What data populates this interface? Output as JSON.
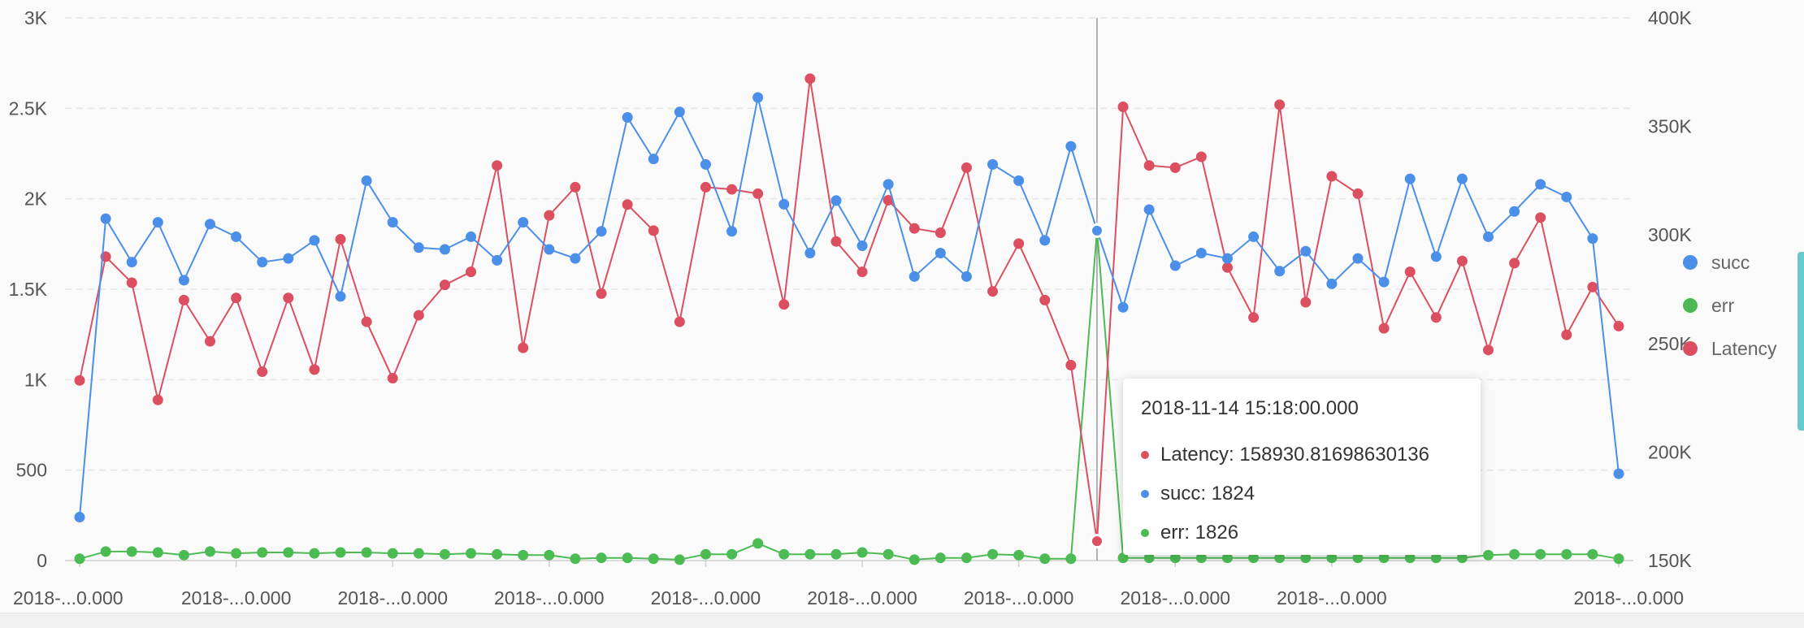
{
  "chart_data": {
    "type": "line",
    "x_tick_labels": [
      "2018-...0.000",
      "2018-...0.000",
      "2018-...0.000",
      "2018-...0.000",
      "2018-...0.000",
      "2018-...0.000",
      "2018-...0.000",
      "2018-...0.000",
      "2018-...0.000",
      "2018-...0.000"
    ],
    "y_left_ticks": [
      "0",
      "500",
      "1K",
      "1.5K",
      "2K",
      "2.5K",
      "3K"
    ],
    "y_left_range": [
      0,
      3000
    ],
    "y_right_ticks": [
      "150K",
      "200K",
      "250K",
      "300K",
      "350K",
      "400K"
    ],
    "y_right_range": [
      150000,
      400000
    ],
    "grid": "horizontal dashed",
    "legend_placement": "right",
    "series": [
      {
        "name": "succ",
        "axis": "left",
        "color": "#4b8fe8",
        "values": [
          240,
          1890,
          1650,
          1870,
          1550,
          1860,
          1790,
          1650,
          1670,
          1770,
          1460,
          2100,
          1870,
          1730,
          1720,
          1790,
          1660,
          1870,
          1720,
          1670,
          1820,
          2450,
          2220,
          2480,
          2190,
          1820,
          2560,
          1970,
          1700,
          1990,
          1740,
          2080,
          1570,
          1700,
          1570,
          2190,
          2100,
          1770,
          2290,
          1824,
          1400,
          1940,
          1630,
          1700,
          1670,
          1790,
          1600,
          1710,
          1530,
          1670,
          1540,
          2110,
          1680,
          2110,
          1790,
          1930,
          2080,
          2010,
          1780,
          480
        ]
      },
      {
        "name": "err",
        "axis": "left",
        "color": "#4cbb54",
        "values": [
          10,
          50,
          50,
          45,
          30,
          50,
          40,
          45,
          45,
          40,
          45,
          45,
          40,
          40,
          35,
          40,
          35,
          30,
          30,
          10,
          15,
          15,
          10,
          5,
          35,
          35,
          95,
          35,
          35,
          35,
          45,
          35,
          5,
          15,
          15,
          35,
          30,
          10,
          10,
          1826,
          15,
          15,
          15,
          15,
          15,
          15,
          15,
          15,
          15,
          15,
          15,
          15,
          15,
          15,
          30,
          35,
          35,
          35,
          35,
          10
        ]
      },
      {
        "name": "Latency",
        "axis": "right",
        "color": "#db4f60",
        "values": [
          233000,
          290000,
          278000,
          224000,
          270000,
          251000,
          271000,
          237000,
          271000,
          238000,
          298000,
          260000,
          234000,
          263000,
          277000,
          283000,
          332000,
          248000,
          309000,
          322000,
          273000,
          314000,
          302000,
          260000,
          322000,
          321000,
          319000,
          268000,
          372000,
          297000,
          283000,
          316000,
          303000,
          301000,
          331000,
          274000,
          296000,
          270000,
          240000,
          158930.81698630136,
          359000,
          332000,
          331000,
          336000,
          285000,
          262000,
          360000,
          269000,
          327000,
          319000,
          257000,
          283000,
          262000,
          288000,
          247000,
          287000,
          308000,
          254000,
          276000,
          258000
        ]
      }
    ],
    "legend": [
      {
        "name": "succ",
        "color": "#4b8fe8"
      },
      {
        "name": "err",
        "color": "#4cbb54"
      },
      {
        "name": "Latency",
        "color": "#db4f60"
      }
    ],
    "tooltip": {
      "title": "2018-11-14 15:18:00.000",
      "rows": [
        {
          "text": "Latency: 158930.81698630136",
          "color": "#db4f60"
        },
        {
          "text": "succ: 1824",
          "color": "#4b8fe8"
        },
        {
          "text": "err: 1826",
          "color": "#4cbb54"
        }
      ]
    }
  }
}
